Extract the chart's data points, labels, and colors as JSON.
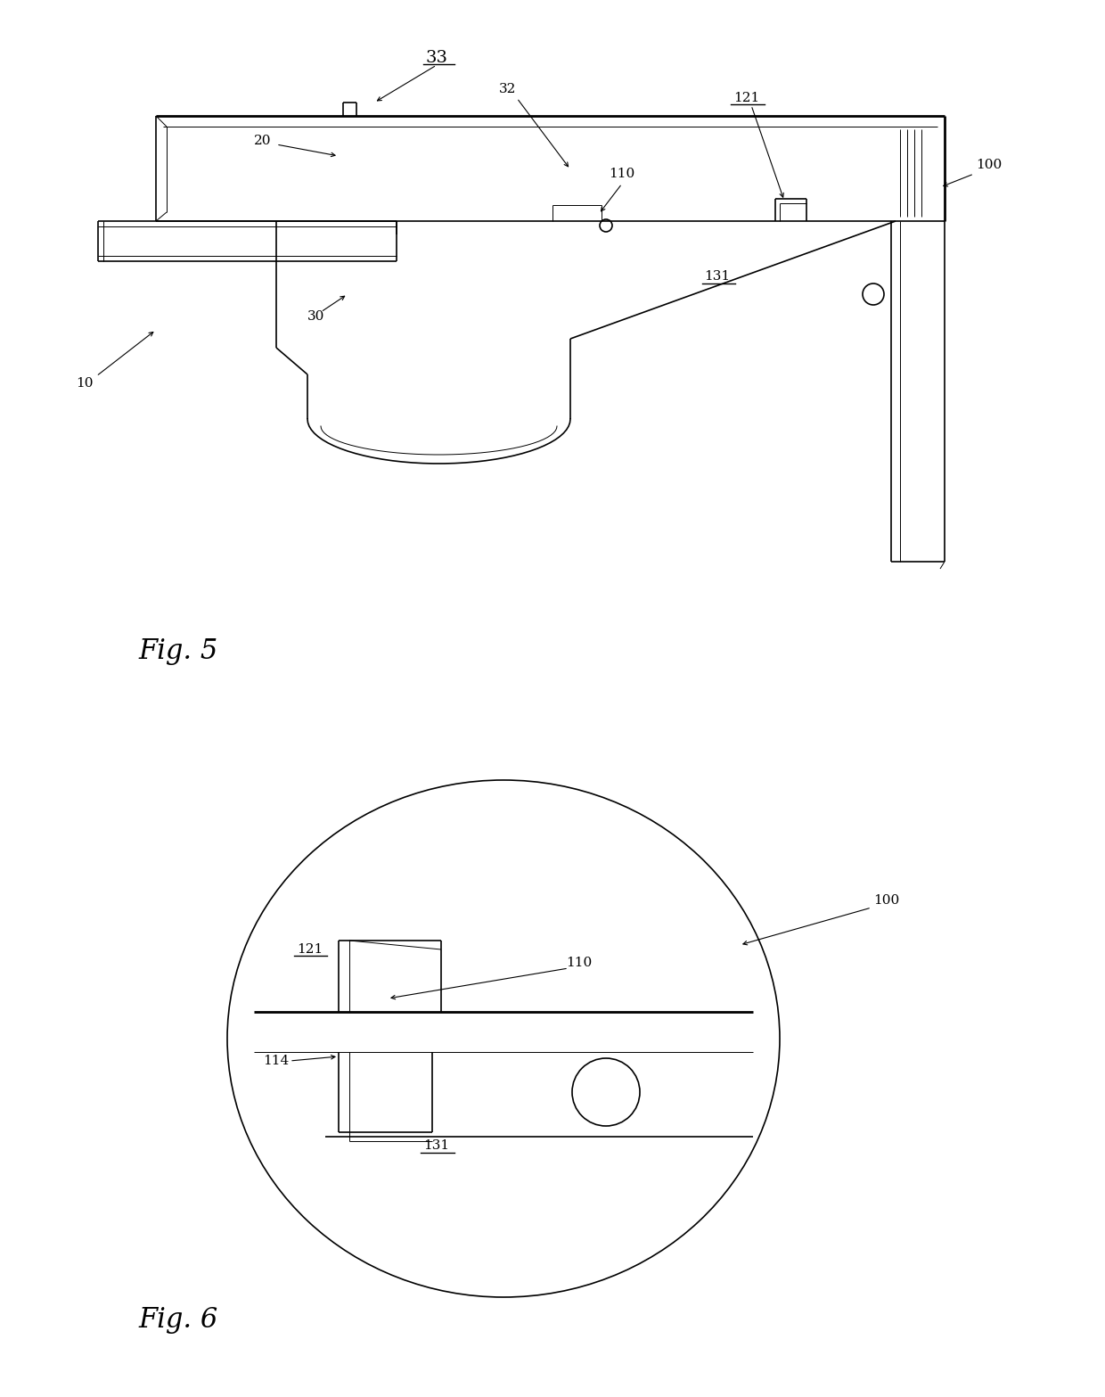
{
  "bg_color": "#ffffff",
  "line_color": "#000000",
  "fig_width": 12.4,
  "fig_height": 15.67,
  "lw_main": 1.2,
  "lw_thin": 0.7,
  "lw_thick": 2.0,
  "fontsize": 11,
  "fig5_caption": "Fig. 5",
  "fig6_caption": "Fig. 6"
}
